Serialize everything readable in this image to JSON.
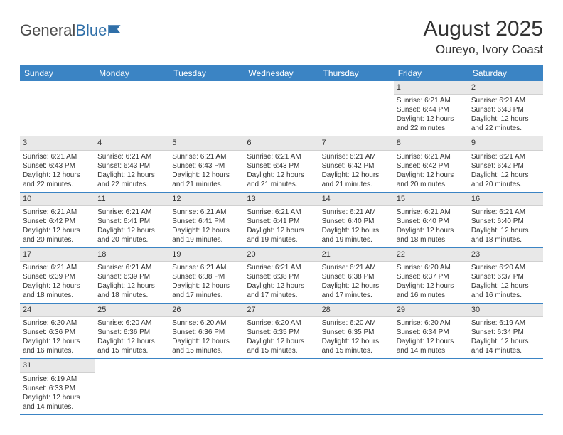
{
  "logo": {
    "text1": "General",
    "text2": "Blue"
  },
  "title": "August 2025",
  "location": "Oureyo, Ivory Coast",
  "colors": {
    "header_bg": "#3b84c4",
    "header_text": "#ffffff",
    "daynum_bg": "#e8e8e8",
    "border": "#3b84c4",
    "text": "#333333",
    "logo_blue": "#2f6fa8"
  },
  "day_names": [
    "Sunday",
    "Monday",
    "Tuesday",
    "Wednesday",
    "Thursday",
    "Friday",
    "Saturday"
  ],
  "weeks": [
    [
      null,
      null,
      null,
      null,
      null,
      {
        "n": "1",
        "sr": "6:21 AM",
        "ss": "6:44 PM",
        "dl": "12 hours and 22 minutes."
      },
      {
        "n": "2",
        "sr": "6:21 AM",
        "ss": "6:43 PM",
        "dl": "12 hours and 22 minutes."
      }
    ],
    [
      {
        "n": "3",
        "sr": "6:21 AM",
        "ss": "6:43 PM",
        "dl": "12 hours and 22 minutes."
      },
      {
        "n": "4",
        "sr": "6:21 AM",
        "ss": "6:43 PM",
        "dl": "12 hours and 22 minutes."
      },
      {
        "n": "5",
        "sr": "6:21 AM",
        "ss": "6:43 PM",
        "dl": "12 hours and 21 minutes."
      },
      {
        "n": "6",
        "sr": "6:21 AM",
        "ss": "6:43 PM",
        "dl": "12 hours and 21 minutes."
      },
      {
        "n": "7",
        "sr": "6:21 AM",
        "ss": "6:42 PM",
        "dl": "12 hours and 21 minutes."
      },
      {
        "n": "8",
        "sr": "6:21 AM",
        "ss": "6:42 PM",
        "dl": "12 hours and 20 minutes."
      },
      {
        "n": "9",
        "sr": "6:21 AM",
        "ss": "6:42 PM",
        "dl": "12 hours and 20 minutes."
      }
    ],
    [
      {
        "n": "10",
        "sr": "6:21 AM",
        "ss": "6:42 PM",
        "dl": "12 hours and 20 minutes."
      },
      {
        "n": "11",
        "sr": "6:21 AM",
        "ss": "6:41 PM",
        "dl": "12 hours and 20 minutes."
      },
      {
        "n": "12",
        "sr": "6:21 AM",
        "ss": "6:41 PM",
        "dl": "12 hours and 19 minutes."
      },
      {
        "n": "13",
        "sr": "6:21 AM",
        "ss": "6:41 PM",
        "dl": "12 hours and 19 minutes."
      },
      {
        "n": "14",
        "sr": "6:21 AM",
        "ss": "6:40 PM",
        "dl": "12 hours and 19 minutes."
      },
      {
        "n": "15",
        "sr": "6:21 AM",
        "ss": "6:40 PM",
        "dl": "12 hours and 18 minutes."
      },
      {
        "n": "16",
        "sr": "6:21 AM",
        "ss": "6:40 PM",
        "dl": "12 hours and 18 minutes."
      }
    ],
    [
      {
        "n": "17",
        "sr": "6:21 AM",
        "ss": "6:39 PM",
        "dl": "12 hours and 18 minutes."
      },
      {
        "n": "18",
        "sr": "6:21 AM",
        "ss": "6:39 PM",
        "dl": "12 hours and 18 minutes."
      },
      {
        "n": "19",
        "sr": "6:21 AM",
        "ss": "6:38 PM",
        "dl": "12 hours and 17 minutes."
      },
      {
        "n": "20",
        "sr": "6:21 AM",
        "ss": "6:38 PM",
        "dl": "12 hours and 17 minutes."
      },
      {
        "n": "21",
        "sr": "6:21 AM",
        "ss": "6:38 PM",
        "dl": "12 hours and 17 minutes."
      },
      {
        "n": "22",
        "sr": "6:20 AM",
        "ss": "6:37 PM",
        "dl": "12 hours and 16 minutes."
      },
      {
        "n": "23",
        "sr": "6:20 AM",
        "ss": "6:37 PM",
        "dl": "12 hours and 16 minutes."
      }
    ],
    [
      {
        "n": "24",
        "sr": "6:20 AM",
        "ss": "6:36 PM",
        "dl": "12 hours and 16 minutes."
      },
      {
        "n": "25",
        "sr": "6:20 AM",
        "ss": "6:36 PM",
        "dl": "12 hours and 15 minutes."
      },
      {
        "n": "26",
        "sr": "6:20 AM",
        "ss": "6:36 PM",
        "dl": "12 hours and 15 minutes."
      },
      {
        "n": "27",
        "sr": "6:20 AM",
        "ss": "6:35 PM",
        "dl": "12 hours and 15 minutes."
      },
      {
        "n": "28",
        "sr": "6:20 AM",
        "ss": "6:35 PM",
        "dl": "12 hours and 15 minutes."
      },
      {
        "n": "29",
        "sr": "6:20 AM",
        "ss": "6:34 PM",
        "dl": "12 hours and 14 minutes."
      },
      {
        "n": "30",
        "sr": "6:19 AM",
        "ss": "6:34 PM",
        "dl": "12 hours and 14 minutes."
      }
    ],
    [
      {
        "n": "31",
        "sr": "6:19 AM",
        "ss": "6:33 PM",
        "dl": "12 hours and 14 minutes."
      },
      null,
      null,
      null,
      null,
      null,
      null
    ]
  ],
  "labels": {
    "sunrise": "Sunrise: ",
    "sunset": "Sunset: ",
    "daylight": "Daylight: "
  }
}
